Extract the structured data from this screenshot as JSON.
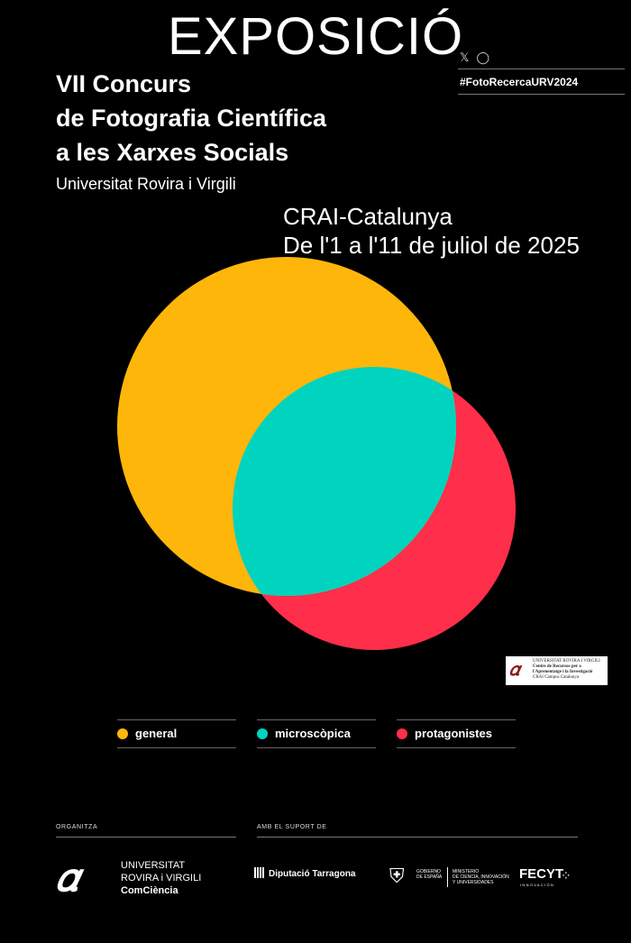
{
  "header": {
    "exhibit_title": "EXPOSICIÓ",
    "social": {
      "x_icon": "x-icon",
      "instagram_icon": "instagram-icon"
    },
    "hashtag": "#FotoRecercaURV2024"
  },
  "contest": {
    "title_lines": [
      "VII Concurs",
      "de Fotografia Científica",
      "a les Xarxes Socials"
    ],
    "university": "Universitat Rovira i Virgili"
  },
  "venue": {
    "place": "CRAI-Catalunya",
    "dates": "De l'1 a l'11 de juliol de 2025"
  },
  "colors": {
    "background": "#000000",
    "yellow": "#FFB60A",
    "teal": "#00D3BE",
    "red": "#FF2E4A"
  },
  "crai_logo": {
    "lines": [
      "UNIVERSITAT ROVIRA I VIRGILI",
      "Centre de Recursos per a",
      "l'Aprenentatge i la Investigació",
      "CRAI Campus Catalunya"
    ]
  },
  "categories": [
    {
      "label": "general",
      "color": "#FFB60A"
    },
    {
      "label": "microscòpica",
      "color": "#00D3BE"
    },
    {
      "label": "protagonistes",
      "color": "#FF2E4A"
    }
  ],
  "footer": {
    "organitza_label": "ORGANITZA",
    "support_label": "AMB EL SUPORT DE",
    "urv_lines": [
      "UNIVERSITAT",
      "ROVIRA i VIRGILI",
      "ComCiència"
    ],
    "diputacio": "Diputació Tarragona",
    "gobierno_lines": [
      "GOBIERNO",
      "DE ESPAÑA"
    ],
    "ministerio_lines": [
      "MINISTERIO",
      "DE CIENCIA, INNOVACIÓN",
      "Y UNIVERSIDADES"
    ],
    "fecyt": "FECYT",
    "fecyt_sub": "INNOVACIÓN"
  }
}
